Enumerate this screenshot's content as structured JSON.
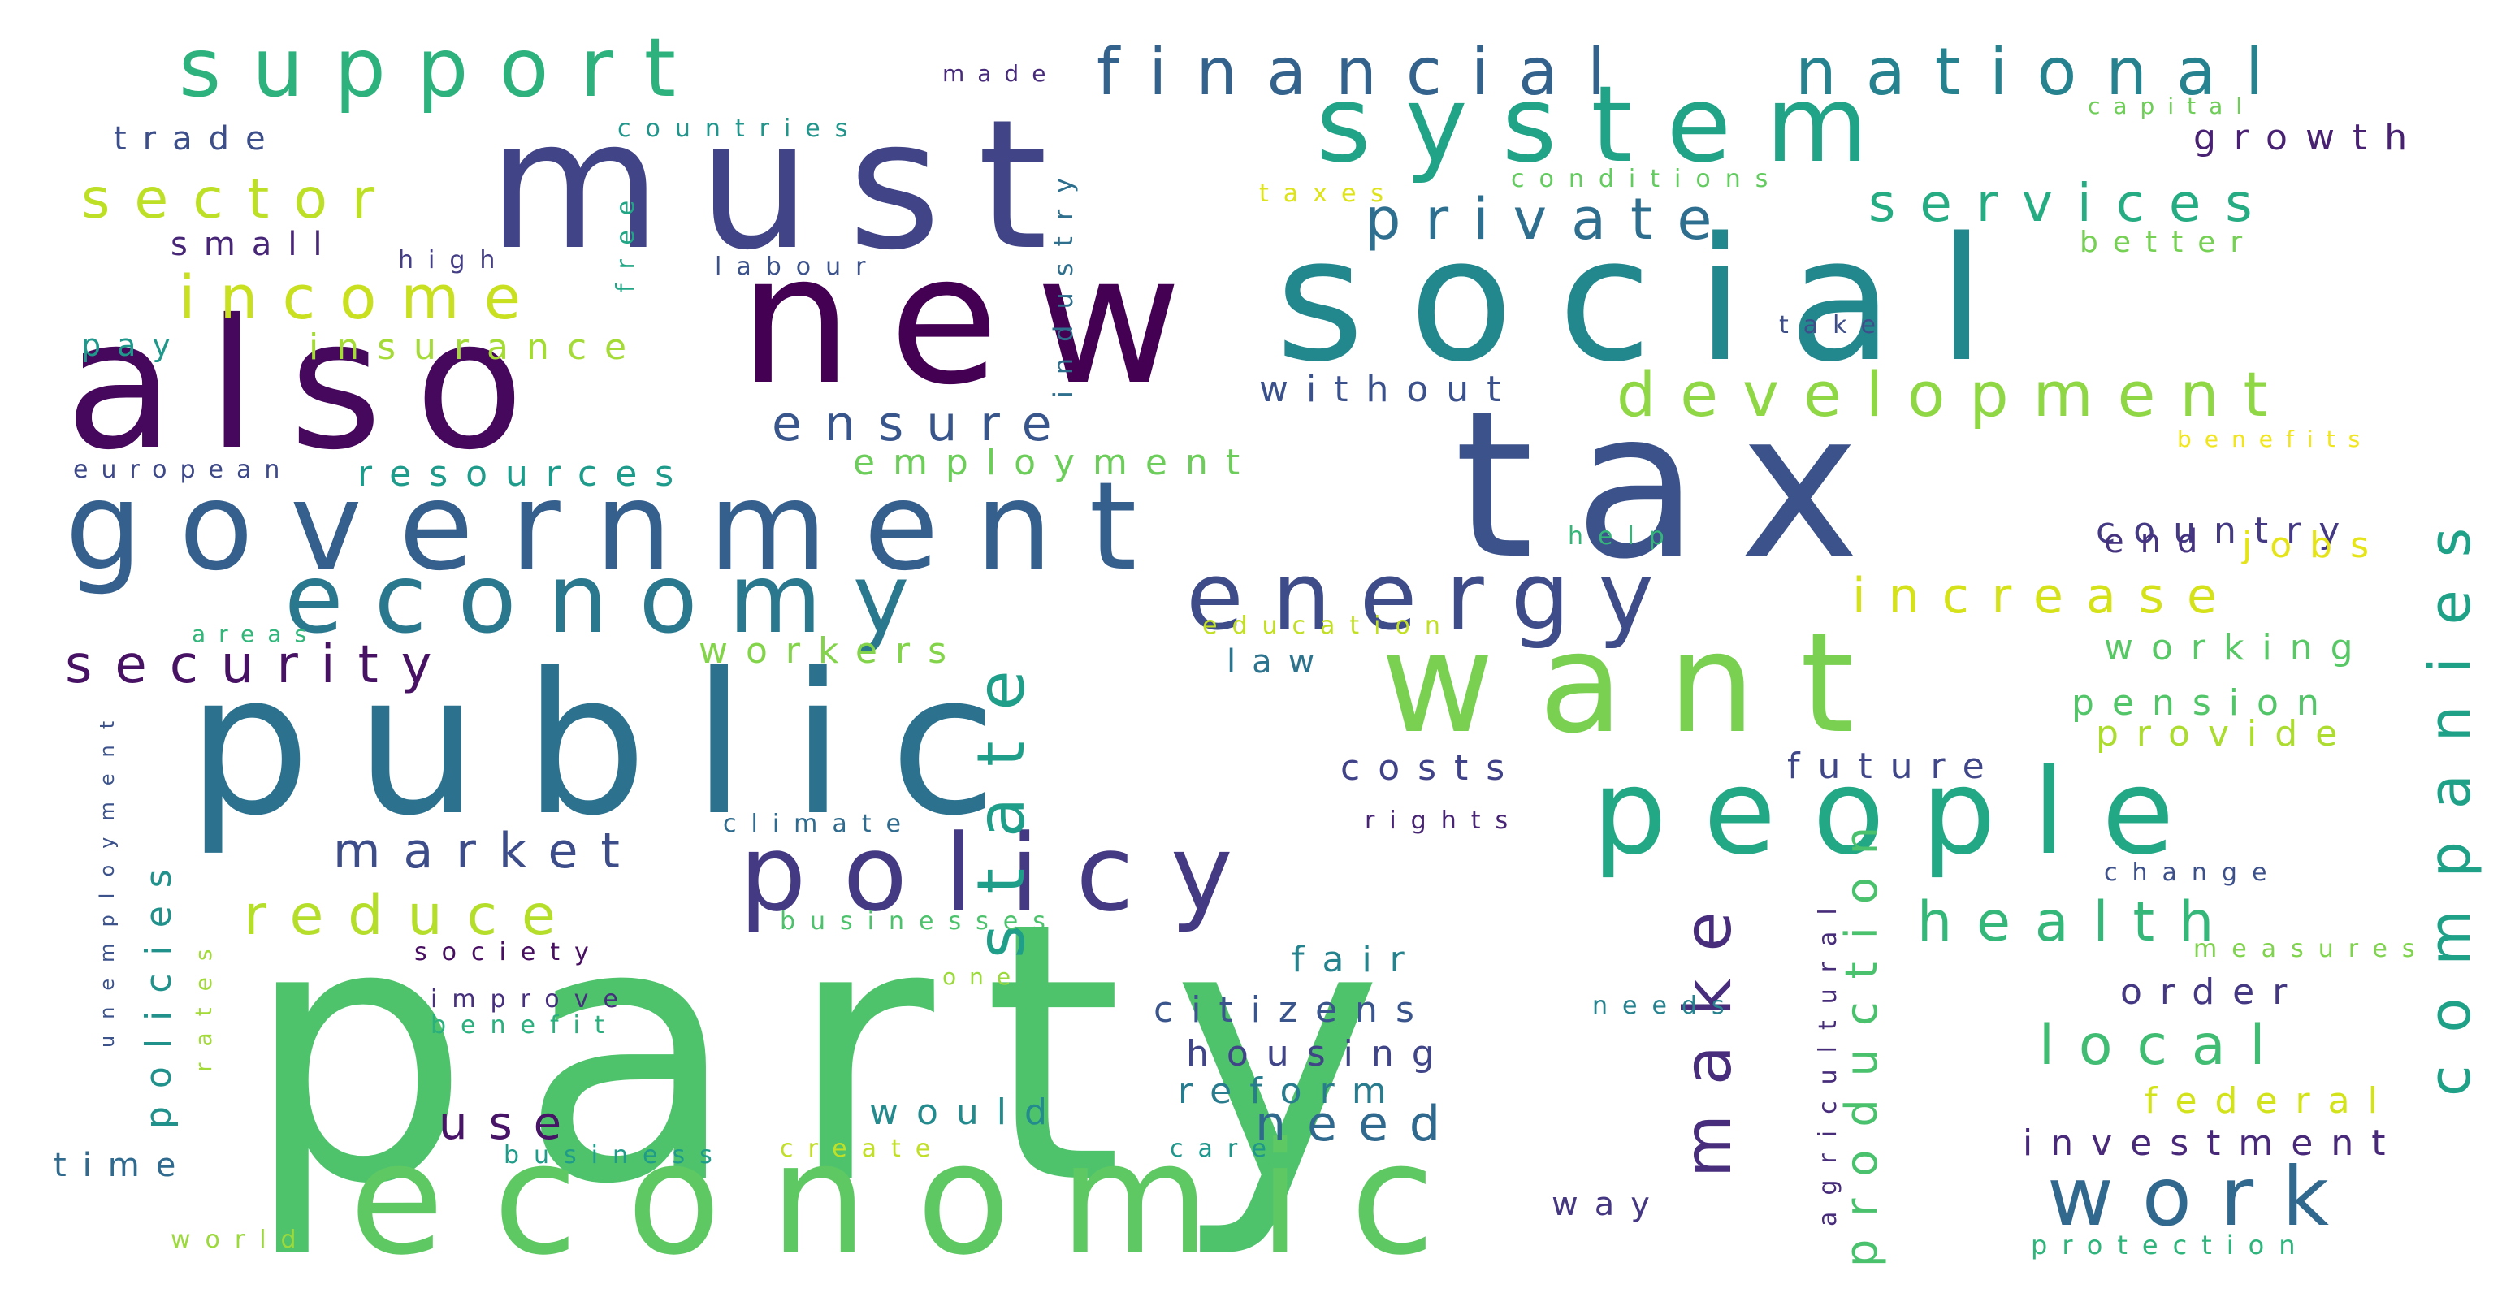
{
  "words": [
    {
      "text": "party",
      "color": "#4ec36b"
    },
    {
      "text": "economic",
      "color": "#5ec962"
    },
    {
      "text": "tax",
      "color": "#3b528b"
    },
    {
      "text": "public",
      "color": "#2c728e"
    },
    {
      "text": "social",
      "color": "#23888e"
    },
    {
      "text": "new",
      "color": "#440154"
    },
    {
      "text": "also",
      "color": "#46085c"
    },
    {
      "text": "must",
      "color": "#414487"
    },
    {
      "text": "want",
      "color": "#7ad151"
    },
    {
      "text": "people",
      "color": "#22a884"
    },
    {
      "text": "government",
      "color": "#355f8d"
    },
    {
      "text": "system",
      "color": "#20a386"
    },
    {
      "text": "economy",
      "color": "#2a788e"
    },
    {
      "text": "energy",
      "color": "#3e4c8a"
    },
    {
      "text": "policy",
      "color": "#443a83"
    },
    {
      "text": "support",
      "color": "#2db27d"
    },
    {
      "text": "financial",
      "color": "#33638d"
    },
    {
      "text": "national",
      "color": "#26828e"
    },
    {
      "text": "work",
      "color": "#31688e"
    },
    {
      "text": "state",
      "color": "#1f9e89"
    },
    {
      "text": "development",
      "color": "#8fd744"
    },
    {
      "text": "make",
      "color": "#472d7b"
    },
    {
      "text": "companies",
      "color": "#1fa188"
    },
    {
      "text": "security",
      "color": "#471164"
    },
    {
      "text": "private",
      "color": "#2e6e8e"
    },
    {
      "text": "services",
      "color": "#25ac82"
    },
    {
      "text": "income",
      "color": "#c8e020"
    },
    {
      "text": "reduce",
      "color": "#b5de2b"
    },
    {
      "text": "sector",
      "color": "#bddf26"
    },
    {
      "text": "health",
      "color": "#35b779"
    },
    {
      "text": "local",
      "color": "#40bd72"
    },
    {
      "text": "market",
      "color": "#3d4d8a"
    },
    {
      "text": "increase",
      "color": "#d5e21a"
    },
    {
      "text": "ensure",
      "color": "#39568c"
    },
    {
      "text": "production",
      "color": "#4ac16d"
    },
    {
      "text": "need",
      "color": "#30698e"
    },
    {
      "text": "resources",
      "color": "#1e9b8a"
    },
    {
      "text": "use",
      "color": "#481467"
    },
    {
      "text": "citizens",
      "color": "#3a548c"
    },
    {
      "text": "insurance",
      "color": "#a5db36"
    },
    {
      "text": "investment",
      "color": "#482878"
    },
    {
      "text": "policies",
      "color": "#21918c"
    },
    {
      "text": "employment",
      "color": "#6ccd5a"
    },
    {
      "text": "pension",
      "color": "#52c569"
    },
    {
      "text": "working",
      "color": "#58c765"
    },
    {
      "text": "would",
      "color": "#238a8d"
    },
    {
      "text": "housing",
      "color": "#404588"
    },
    {
      "text": "reform",
      "color": "#297b8e"
    },
    {
      "text": "future",
      "color": "#3f4788"
    },
    {
      "text": "costs",
      "color": "#404387"
    },
    {
      "text": "fair",
      "color": "#25838e"
    },
    {
      "text": "country",
      "color": "#443983"
    },
    {
      "text": "without",
      "color": "#3b518b"
    },
    {
      "text": "growth",
      "color": "#482173"
    },
    {
      "text": "order",
      "color": "#453882"
    },
    {
      "text": "workers",
      "color": "#84d44b"
    },
    {
      "text": "small",
      "color": "#482677"
    },
    {
      "text": "trade",
      "color": "#3c4f8a"
    },
    {
      "text": "provide",
      "color": "#addc30"
    },
    {
      "text": "jobs",
      "color": "#e5e419"
    },
    {
      "text": "federal",
      "color": "#d2e21b"
    },
    {
      "text": "law",
      "color": "#2c738e"
    },
    {
      "text": "time",
      "color": "#306a8e"
    },
    {
      "text": "end",
      "color": "#46337f"
    },
    {
      "text": "better",
      "color": "#75d054"
    },
    {
      "text": "pay",
      "color": "#1f988b"
    },
    {
      "text": "way",
      "color": "#453781"
    },
    {
      "text": "unemployment",
      "color": "#3b528b"
    },
    {
      "text": "agricultural",
      "color": "#472c7a"
    },
    {
      "text": "industry",
      "color": "#2e6f8e"
    },
    {
      "text": "rates",
      "color": "#a2da37"
    },
    {
      "text": "climate",
      "color": "#2f6b8e"
    },
    {
      "text": "rights",
      "color": "#482475"
    },
    {
      "text": "change",
      "color": "#3c508b"
    },
    {
      "text": "measures",
      "color": "#7fd34e"
    },
    {
      "text": "free",
      "color": "#21a685"
    },
    {
      "text": "labour",
      "color": "#3b528b"
    },
    {
      "text": "high",
      "color": "#433e85"
    },
    {
      "text": "countries",
      "color": "#1f958b"
    },
    {
      "text": "made",
      "color": "#472a7a"
    },
    {
      "text": "capital",
      "color": "#6ece58"
    },
    {
      "text": "conditions",
      "color": "#63cb5f"
    },
    {
      "text": "taxes",
      "color": "#dde318"
    },
    {
      "text": "take",
      "color": "#3d4e8a"
    },
    {
      "text": "european",
      "color": "#3e4989"
    },
    {
      "text": "help",
      "color": "#34b679"
    },
    {
      "text": "benefits",
      "color": "#f1e51d"
    },
    {
      "text": "education",
      "color": "#c2df23"
    },
    {
      "text": "areas",
      "color": "#32b67a"
    },
    {
      "text": "businesses",
      "color": "#4cc26c"
    },
    {
      "text": "society",
      "color": "#470e61"
    },
    {
      "text": "one",
      "color": "#9bd93c"
    },
    {
      "text": "improve",
      "color": "#46307e"
    },
    {
      "text": "needs",
      "color": "#26828e"
    },
    {
      "text": "benefit",
      "color": "#2ab07f"
    },
    {
      "text": "business",
      "color": "#1e9c89"
    },
    {
      "text": "create",
      "color": "#c0df25"
    },
    {
      "text": "care",
      "color": "#1f968b"
    },
    {
      "text": "world",
      "color": "#9bd93c"
    },
    {
      "text": "protection",
      "color": "#2fb47c"
    }
  ]
}
